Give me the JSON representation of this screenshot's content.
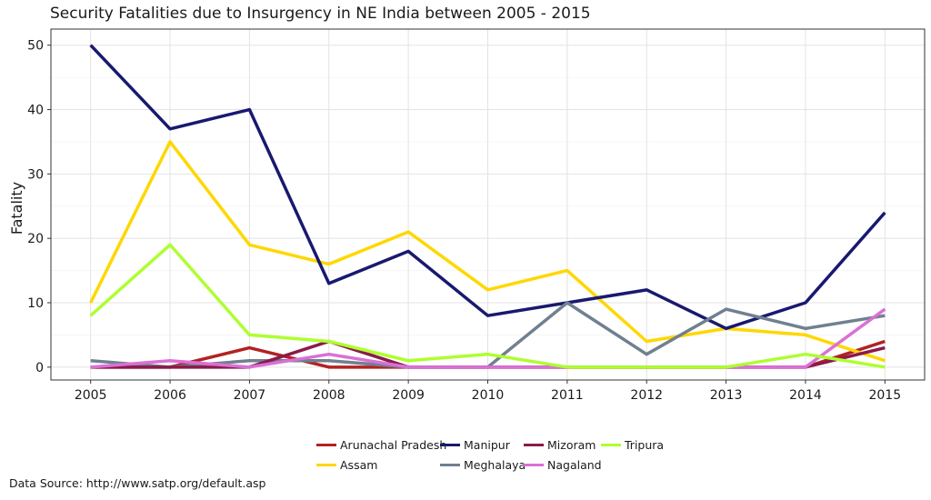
{
  "chart_data": {
    "type": "line",
    "title": "Security Fatalities due to Insurgency in NE India between 2005 - 2015",
    "xlabel": "",
    "ylabel": "Fatality",
    "x": [
      2005,
      2006,
      2007,
      2008,
      2009,
      2010,
      2011,
      2012,
      2013,
      2014,
      2015
    ],
    "yticks": [
      0,
      10,
      20,
      30,
      40,
      50
    ],
    "ylim": [
      -2,
      52.5
    ],
    "xlim": [
      2004.5,
      2015.5
    ],
    "grid": true,
    "legend_position": "bottom",
    "series": [
      {
        "name": "Arunachal Pradesh",
        "color": "#b22222",
        "values": [
          0,
          0,
          3,
          0,
          0,
          0,
          0,
          0,
          0,
          0,
          4
        ]
      },
      {
        "name": "Assam",
        "color": "#ffd700",
        "values": [
          10,
          35,
          19,
          16,
          21,
          12,
          15,
          4,
          6,
          5,
          1
        ]
      },
      {
        "name": "Manipur",
        "color": "#191970",
        "values": [
          50,
          37,
          40,
          13,
          18,
          8,
          10,
          12,
          6,
          10,
          24
        ]
      },
      {
        "name": "Meghalaya",
        "color": "#708090",
        "values": [
          1,
          0,
          1,
          1,
          0,
          0,
          10,
          2,
          9,
          6,
          8
        ]
      },
      {
        "name": "Mizoram",
        "color": "#8b1a4a",
        "values": [
          0,
          0,
          0,
          4,
          0,
          0,
          0,
          0,
          0,
          0,
          3
        ]
      },
      {
        "name": "Nagaland",
        "color": "#da70d6",
        "values": [
          0,
          1,
          0,
          2,
          0,
          0,
          0,
          0,
          0,
          0,
          9
        ]
      },
      {
        "name": "Tripura",
        "color": "#adff2f",
        "values": [
          8,
          19,
          5,
          4,
          1,
          2,
          0,
          0,
          0,
          2,
          0
        ]
      }
    ]
  },
  "source_note": "Data Source: http://www.satp.org/default.asp"
}
